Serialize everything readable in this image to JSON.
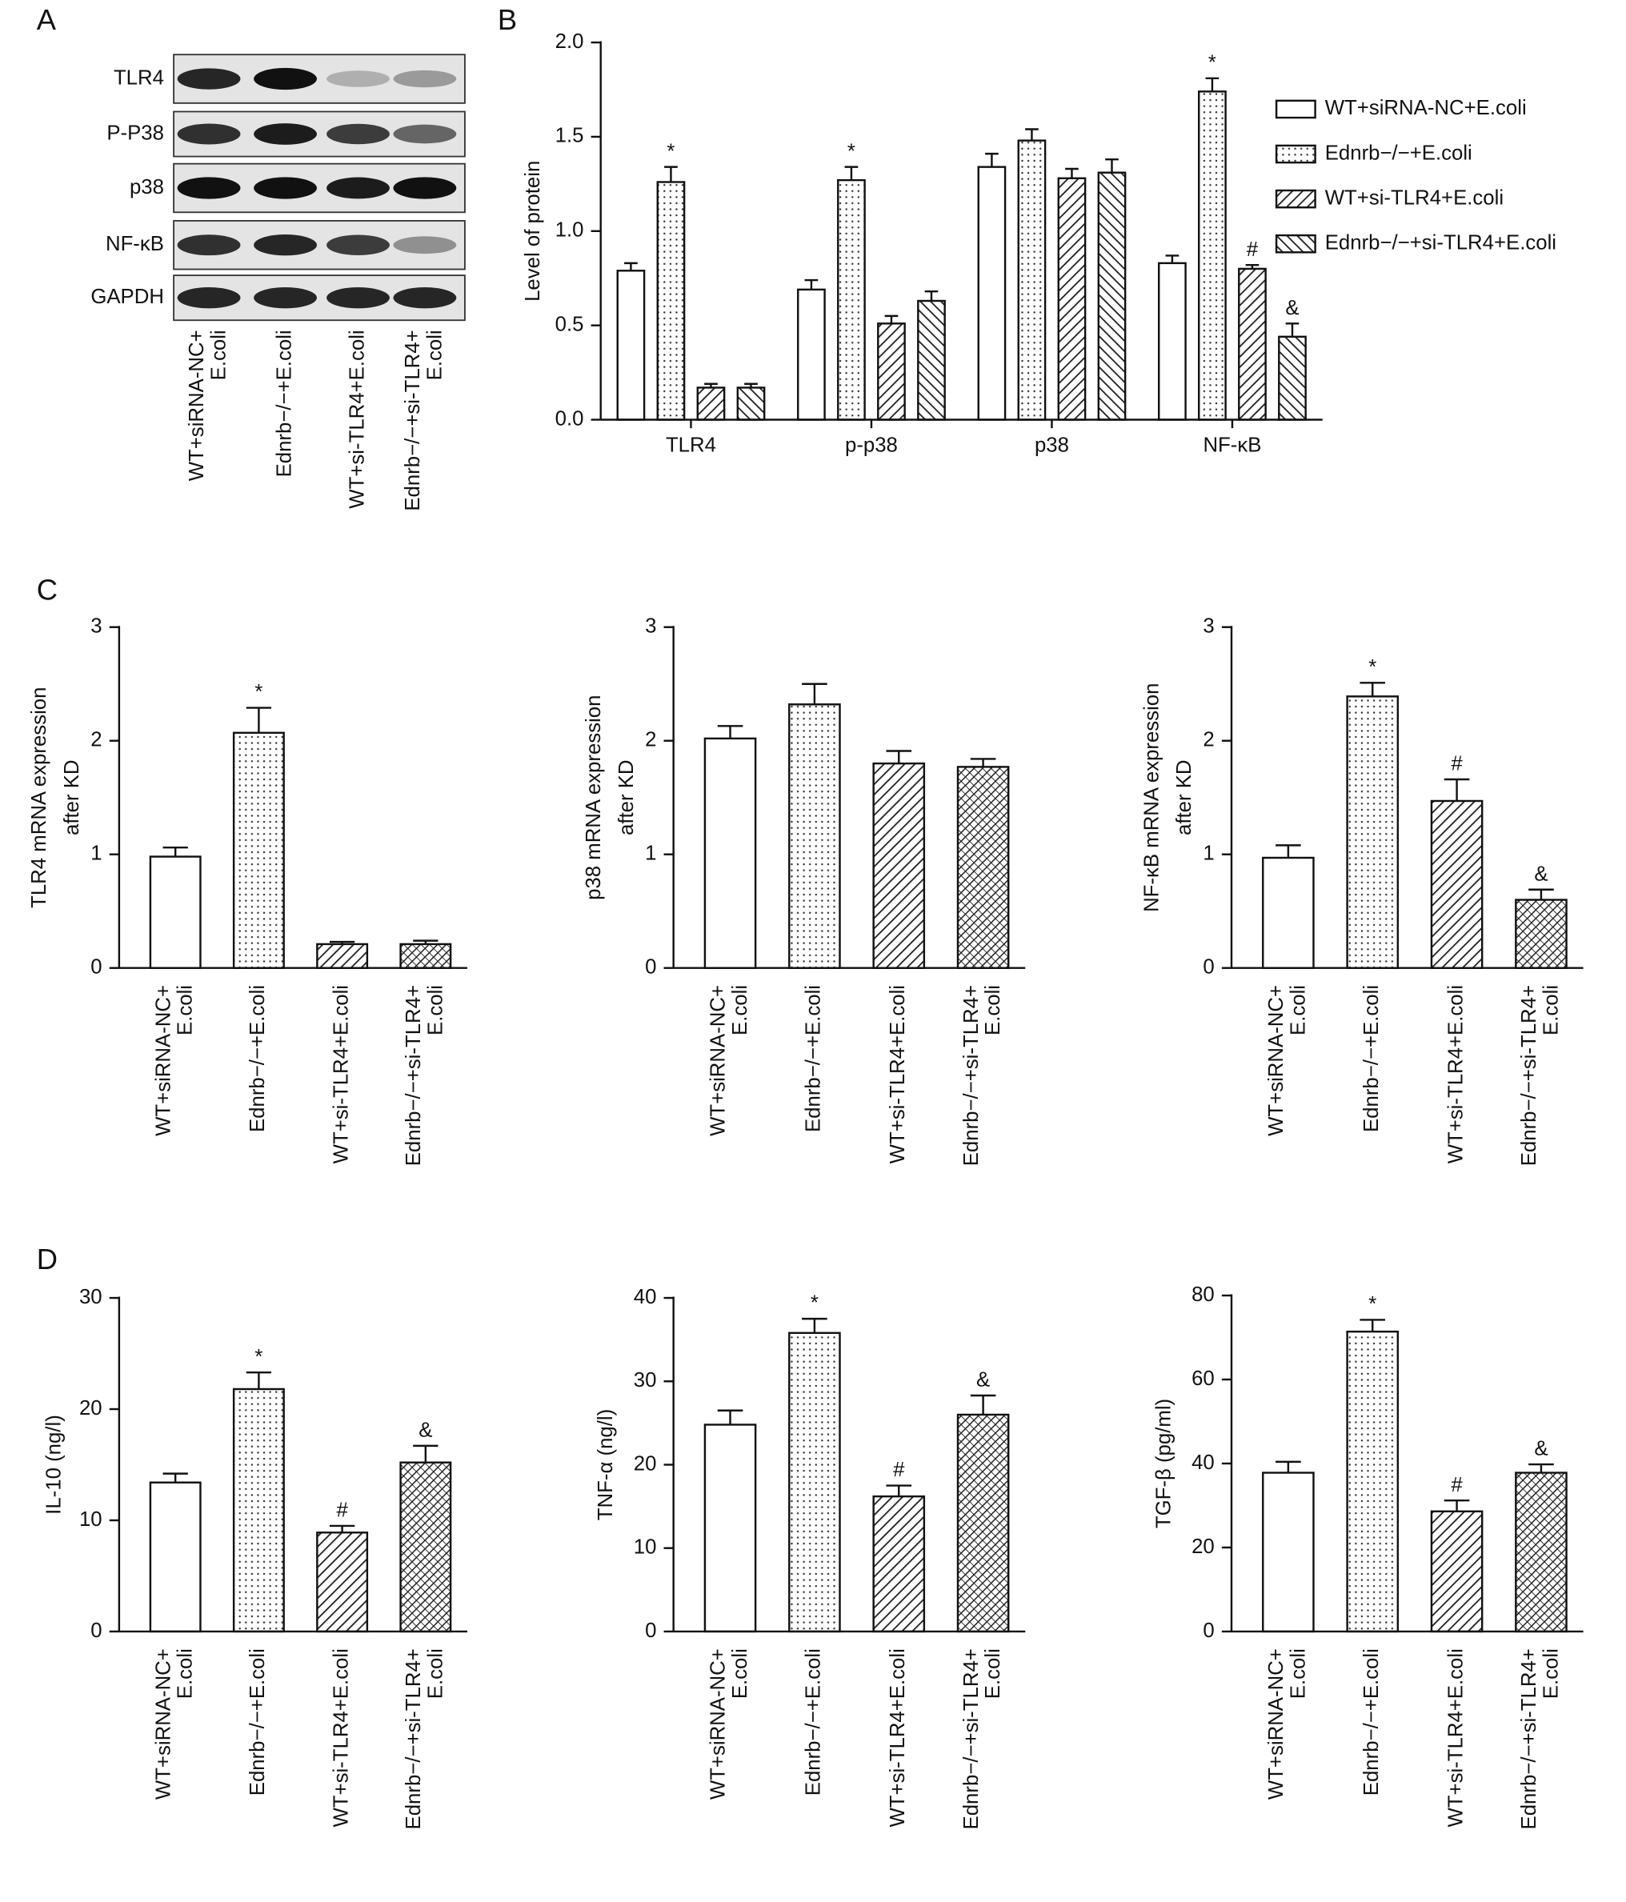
{
  "panel_labels": [
    "A",
    "B",
    "C",
    "D"
  ],
  "blot": {
    "proteins": [
      "TLR4",
      "P-P38",
      "p38",
      "NF-κB",
      "GAPDH"
    ],
    "lanes": [
      [
        "WT+siRNA-NC+",
        "E.coli"
      ],
      [
        "Ednrb−/−+E.coli"
      ],
      [
        "WT+si-TLR4+E.coli"
      ],
      [
        "Ednrb−/−+si-TLR4+",
        "E.coli"
      ]
    ]
  },
  "chart_data": [
    {
      "type": "bar",
      "ylabel": [
        "Level of protein"
      ],
      "categories": [
        "TLR4",
        "p-p38",
        "p38",
        "NF-κB"
      ],
      "series": [
        {
          "name": "WT+siRNA-NC+E.coli",
          "pattern": "open",
          "values": [
            0.79,
            0.69,
            1.34,
            0.83
          ],
          "errors": [
            0.04,
            0.05,
            0.07,
            0.04
          ],
          "annotations": [
            null,
            null,
            null,
            null
          ]
        },
        {
          "name": "Ednrb−/−+E.coli",
          "pattern": "dots",
          "values": [
            1.26,
            1.27,
            1.48,
            1.74
          ],
          "errors": [
            0.08,
            0.07,
            0.06,
            0.07
          ],
          "annotations": [
            "*",
            "*",
            null,
            "*"
          ]
        },
        {
          "name": "WT+si-TLR4+E.coli",
          "pattern": "hatch",
          "values": [
            0.17,
            0.51,
            1.28,
            0.8
          ],
          "errors": [
            0.02,
            0.04,
            0.05,
            0.02
          ],
          "annotations": [
            null,
            null,
            null,
            "#"
          ]
        },
        {
          "name": "Ednrb−/−+si-TLR4+E.coli",
          "pattern": "backhatch",
          "values": [
            0.17,
            0.63,
            1.31,
            0.44
          ],
          "errors": [
            0.02,
            0.05,
            0.07,
            0.07
          ],
          "annotations": [
            null,
            null,
            null,
            "&"
          ]
        }
      ],
      "ylim": [
        0,
        2
      ],
      "yticks": [
        {
          "value": 0,
          "label": "0.0"
        },
        0.5,
        {
          "value": 1,
          "label": "1.0"
        },
        1.5,
        {
          "value": 2,
          "label": "2.0"
        }
      ],
      "legend": "right"
    },
    {
      "type": "bar",
      "ylabel": [
        "TLR4 mRNA expression",
        "after KD"
      ],
      "categories": [
        [
          "WT+siRNA-NC+",
          "E.coli"
        ],
        [
          "Ednrb−/−+E.coli"
        ],
        [
          "WT+si-TLR4+E.coli"
        ],
        [
          "Ednrb−/−+si-TLR4+",
          "E.coli"
        ]
      ],
      "values": [
        0.98,
        2.07,
        0.21,
        0.21
      ],
      "errors": [
        0.08,
        0.22,
        0.02,
        0.03
      ],
      "annotations": [
        null,
        "*",
        null,
        null
      ],
      "patterns": [
        "open",
        "dots",
        "hatch",
        "crosshatch"
      ],
      "ylim": [
        0,
        3
      ],
      "yticks": [
        0,
        1,
        2,
        3
      ]
    },
    {
      "type": "bar",
      "ylabel": [
        "p38 mRNA expression",
        "after KD"
      ],
      "categories": [
        [
          "WT+siRNA-NC+",
          "E.coli"
        ],
        [
          "Ednrb−/−+E.coli"
        ],
        [
          "WT+si-TLR4+E.coli"
        ],
        [
          "Ednrb−/−+si-TLR4+",
          "E.coli"
        ]
      ],
      "values": [
        2.02,
        2.32,
        1.8,
        1.77
      ],
      "errors": [
        0.11,
        0.18,
        0.11,
        0.07
      ],
      "annotations": [
        null,
        null,
        null,
        null
      ],
      "patterns": [
        "open",
        "dots",
        "hatch",
        "crosshatch"
      ],
      "ylim": [
        0,
        3
      ],
      "yticks": [
        0,
        1,
        2,
        3
      ]
    },
    {
      "type": "bar",
      "ylabel": [
        "NF-κB mRNA expression",
        "after KD"
      ],
      "categories": [
        [
          "WT+siRNA-NC+",
          "E.coli"
        ],
        [
          "Ednrb−/−+E.coli"
        ],
        [
          "WT+si-TLR4+E.coli"
        ],
        [
          "Ednrb−/−+si-TLR4+",
          "E.coli"
        ]
      ],
      "values": [
        0.97,
        2.39,
        1.47,
        0.6
      ],
      "errors": [
        0.11,
        0.12,
        0.19,
        0.09
      ],
      "annotations": [
        null,
        "*",
        "#",
        "&"
      ],
      "patterns": [
        "open",
        "dots",
        "hatch",
        "crosshatch"
      ],
      "ylim": [
        0,
        3
      ],
      "yticks": [
        0,
        1,
        2,
        3
      ]
    },
    {
      "type": "bar",
      "ylabel": [
        "IL-10 (ng/l)"
      ],
      "categories": [
        [
          "WT+siRNA-NC+",
          "E.coli"
        ],
        [
          "Ednrb−/−+E.coli"
        ],
        [
          "WT+si-TLR4+E.coli"
        ],
        [
          "Ednrb−/−+si-TLR4+",
          "E.coli"
        ]
      ],
      "values": [
        13.4,
        21.8,
        8.9,
        15.2
      ],
      "errors": [
        0.8,
        1.5,
        0.6,
        1.5
      ],
      "annotations": [
        null,
        "*",
        "#",
        "&"
      ],
      "patterns": [
        "open",
        "dots",
        "hatch",
        "crosshatch"
      ],
      "ylim": [
        0,
        30
      ],
      "yticks": [
        0,
        10,
        20,
        30
      ]
    },
    {
      "type": "bar",
      "ylabel": [
        "TNF-α (ng/l)"
      ],
      "categories": [
        [
          "WT+siRNA-NC+",
          "E.coli"
        ],
        [
          "Ednrb−/−+E.coli"
        ],
        [
          "WT+si-TLR4+E.coli"
        ],
        [
          "Ednrb−/−+si-TLR4+",
          "E.coli"
        ]
      ],
      "values": [
        24.8,
        35.8,
        16.2,
        26.0
      ],
      "errors": [
        1.7,
        1.7,
        1.3,
        2.3
      ],
      "annotations": [
        null,
        "*",
        "#",
        "&"
      ],
      "patterns": [
        "open",
        "dots",
        "hatch",
        "crosshatch"
      ],
      "ylim": [
        0,
        40
      ],
      "yticks": [
        0,
        10,
        20,
        30,
        40
      ]
    },
    {
      "type": "bar",
      "ylabel": [
        "TGF-β (pg/ml)"
      ],
      "categories": [
        [
          "WT+siRNA-NC+",
          "E.coli"
        ],
        [
          "Ednrb−/−+E.coli"
        ],
        [
          "WT+si-TLR4+E.coli"
        ],
        [
          "Ednrb−/−+si-TLR4+",
          "E.coli"
        ]
      ],
      "values": [
        37.8,
        71.4,
        28.6,
        37.8
      ],
      "errors": [
        2.6,
        2.8,
        2.6,
        2.0
      ],
      "annotations": [
        null,
        "*",
        "#",
        "&"
      ],
      "patterns": [
        "open",
        "dots",
        "hatch",
        "crosshatch"
      ],
      "ylim": [
        0,
        80
      ],
      "yticks": [
        0,
        20,
        40,
        60,
        80
      ]
    }
  ]
}
